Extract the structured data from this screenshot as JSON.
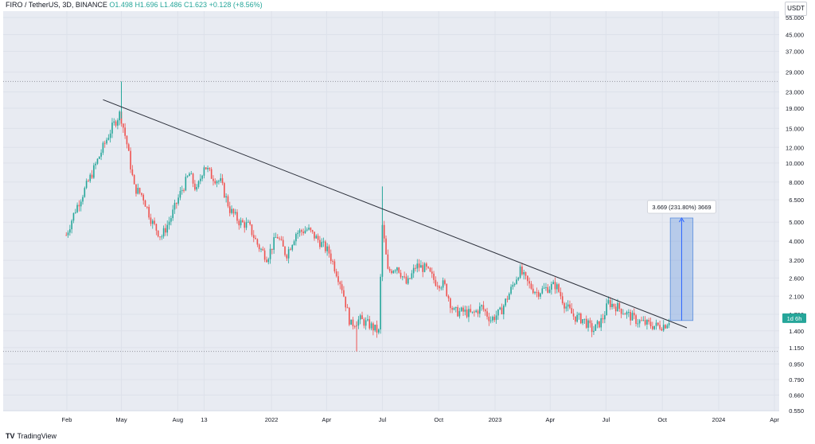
{
  "header": {
    "symbol": "FIRO / TetherUS, 3D, BINANCE",
    "open": "O1.498",
    "high": "H1.696",
    "low": "L1.486",
    "close": "C1.623",
    "change": "+0.128 (+8.56%)"
  },
  "currency_button": "USDT",
  "footer": {
    "logo_glyph": "TV",
    "brand": "TradingView"
  },
  "colors": {
    "background": "#e8ebf2",
    "up": "#26a69a",
    "down": "#ef5350",
    "trendline": "#2a2e39",
    "measure_fill": "#5b8fde",
    "price_label_bg": "#26a69a"
  },
  "chart_data": {
    "type": "candlestick",
    "symbol": "FIRO / TetherUS",
    "interval": "3D",
    "exchange": "BINANCE",
    "scale": "log",
    "y_ticks": [
      55.0,
      45.0,
      37.0,
      29.0,
      23.0,
      19.0,
      15.0,
      12.0,
      10.0,
      8.0,
      6.5,
      5.0,
      4.0,
      3.2,
      2.6,
      2.1,
      1.7,
      1.4,
      1.15,
      0.95,
      0.79,
      0.66,
      0.55
    ],
    "y_tick_labels": [
      "55.000",
      "45.000",
      "37.000",
      "29.000",
      "23.000",
      "19.000",
      "15.000",
      "12.000",
      "10.000",
      "8.000",
      "6.500",
      "5.000",
      "4.000",
      "3.200",
      "2.600",
      "2.100",
      "1.700",
      "1.400",
      "1.150",
      "0.950",
      "0.790",
      "0.660",
      "0.550"
    ],
    "x_ticks": [
      {
        "label": "Feb",
        "date": "2021-02-01"
      },
      {
        "label": "May",
        "date": "2021-05-01"
      },
      {
        "label": "Aug",
        "date": "2021-08-01"
      },
      {
        "label": "13",
        "date": "2021-09-13"
      },
      {
        "label": "2022",
        "date": "2022-01-01"
      },
      {
        "label": "Apr",
        "date": "2022-04-01"
      },
      {
        "label": "Jul",
        "date": "2022-07-01"
      },
      {
        "label": "Oct",
        "date": "2022-10-01"
      },
      {
        "label": "2023",
        "date": "2023-01-01"
      },
      {
        "label": "Apr",
        "date": "2023-04-01"
      },
      {
        "label": "Jul",
        "date": "2023-07-01"
      },
      {
        "label": "Oct",
        "date": "2023-10-01"
      },
      {
        "label": "2024",
        "date": "2024-01-01"
      },
      {
        "label": "Apr",
        "date": "2024-04-01"
      }
    ],
    "price_path": [
      [
        "2021-01-31",
        4.3
      ],
      [
        "2021-02-15",
        5.8
      ],
      [
        "2021-03-01",
        7.2
      ],
      [
        "2021-03-15",
        9.0
      ],
      [
        "2021-04-01",
        12.0
      ],
      [
        "2021-04-15",
        15.0
      ],
      [
        "2021-04-29",
        18.0
      ],
      [
        "2021-05-10",
        12.5
      ],
      [
        "2021-05-22",
        7.5
      ],
      [
        "2021-06-05",
        6.8
      ],
      [
        "2021-06-20",
        5.0
      ],
      [
        "2021-07-05",
        4.2
      ],
      [
        "2021-07-20",
        5.2
      ],
      [
        "2021-08-05",
        7.0
      ],
      [
        "2021-08-20",
        8.8
      ],
      [
        "2021-09-01",
        7.2
      ],
      [
        "2021-09-13",
        9.8
      ],
      [
        "2021-09-25",
        8.6
      ],
      [
        "2021-10-10",
        8.0
      ],
      [
        "2021-10-25",
        5.8
      ],
      [
        "2021-11-10",
        5.0
      ],
      [
        "2021-11-25",
        4.8
      ],
      [
        "2021-12-10",
        3.8
      ],
      [
        "2021-12-25",
        3.3
      ],
      [
        "2022-01-10",
        4.3
      ],
      [
        "2022-01-25",
        3.4
      ],
      [
        "2022-02-10",
        4.4
      ],
      [
        "2022-03-01",
        4.6
      ],
      [
        "2022-03-20",
        4.0
      ],
      [
        "2022-04-05",
        3.5
      ],
      [
        "2022-04-25",
        2.4
      ],
      [
        "2022-05-10",
        1.5
      ],
      [
        "2022-05-25",
        1.6
      ],
      [
        "2022-06-10",
        1.5
      ],
      [
        "2022-06-25",
        1.38
      ],
      [
        "2022-07-01",
        4.8
      ],
      [
        "2022-07-10",
        2.8
      ],
      [
        "2022-07-25",
        3.0
      ],
      [
        "2022-08-10",
        2.4
      ],
      [
        "2022-08-25",
        3.0
      ],
      [
        "2022-09-10",
        2.9
      ],
      [
        "2022-09-25",
        2.5
      ],
      [
        "2022-10-10",
        2.4
      ],
      [
        "2022-10-25",
        1.75
      ],
      [
        "2022-11-10",
        1.75
      ],
      [
        "2022-11-25",
        1.7
      ],
      [
        "2022-12-10",
        1.85
      ],
      [
        "2022-12-25",
        1.6
      ],
      [
        "2023-01-10",
        1.75
      ],
      [
        "2023-01-25",
        2.2
      ],
      [
        "2023-02-10",
        2.85
      ],
      [
        "2023-02-25",
        2.4
      ],
      [
        "2023-03-10",
        2.2
      ],
      [
        "2023-03-25",
        2.3
      ],
      [
        "2023-04-10",
        2.4
      ],
      [
        "2023-04-25",
        1.9
      ],
      [
        "2023-05-10",
        1.65
      ],
      [
        "2023-05-25",
        1.6
      ],
      [
        "2023-06-10",
        1.4
      ],
      [
        "2023-06-25",
        1.6
      ],
      [
        "2023-07-05",
        1.95
      ],
      [
        "2023-07-20",
        1.85
      ],
      [
        "2023-08-05",
        1.7
      ],
      [
        "2023-08-20",
        1.58
      ],
      [
        "2023-09-05",
        1.52
      ],
      [
        "2023-09-20",
        1.48
      ],
      [
        "2023-10-05",
        1.5
      ],
      [
        "2023-10-14",
        1.62
      ]
    ],
    "wick_extremes": [
      {
        "date": "2021-05-01",
        "value": 26.0
      },
      {
        "date": "2022-07-01",
        "value": 7.6
      },
      {
        "date": "2022-05-20",
        "value": 1.1
      }
    ],
    "horizontal_levels": [
      26.0,
      1.1
    ],
    "trendline": {
      "from": {
        "date": "2021-04-01",
        "value": 21.0
      },
      "to": {
        "date": "2023-11-10",
        "value": 1.45
      }
    },
    "measurement": {
      "label": "3.669 (231.80%) 3669",
      "from_value": 1.58,
      "to_value": 5.25,
      "from_date": "2023-10-14",
      "to_date": "2023-11-20"
    },
    "last_price_label": "1d 6h",
    "last_price": 1.623
  }
}
